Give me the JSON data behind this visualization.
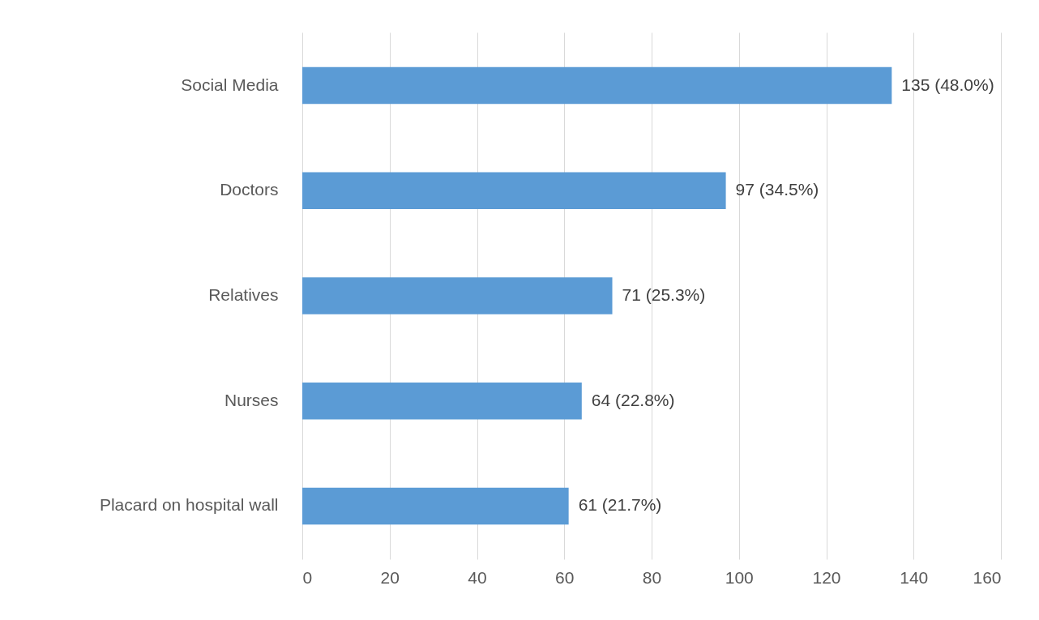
{
  "chart_data": {
    "type": "bar",
    "orientation": "horizontal",
    "categories": [
      "Social Media",
      "Doctors",
      "Relatives",
      "Nurses",
      "Placard on hospital wall"
    ],
    "values": [
      135,
      97,
      71,
      64,
      61
    ],
    "value_labels": [
      "135 (48.0%)",
      "97 (34.5%)",
      "71 (25.3%)",
      "64 (22.8%)",
      "61 (21.7%)"
    ],
    "color": "#5b9bd5",
    "xlim": [
      0,
      160
    ],
    "xticks": [
      0,
      20,
      40,
      60,
      80,
      100,
      120,
      140,
      160
    ],
    "grid": "x"
  }
}
